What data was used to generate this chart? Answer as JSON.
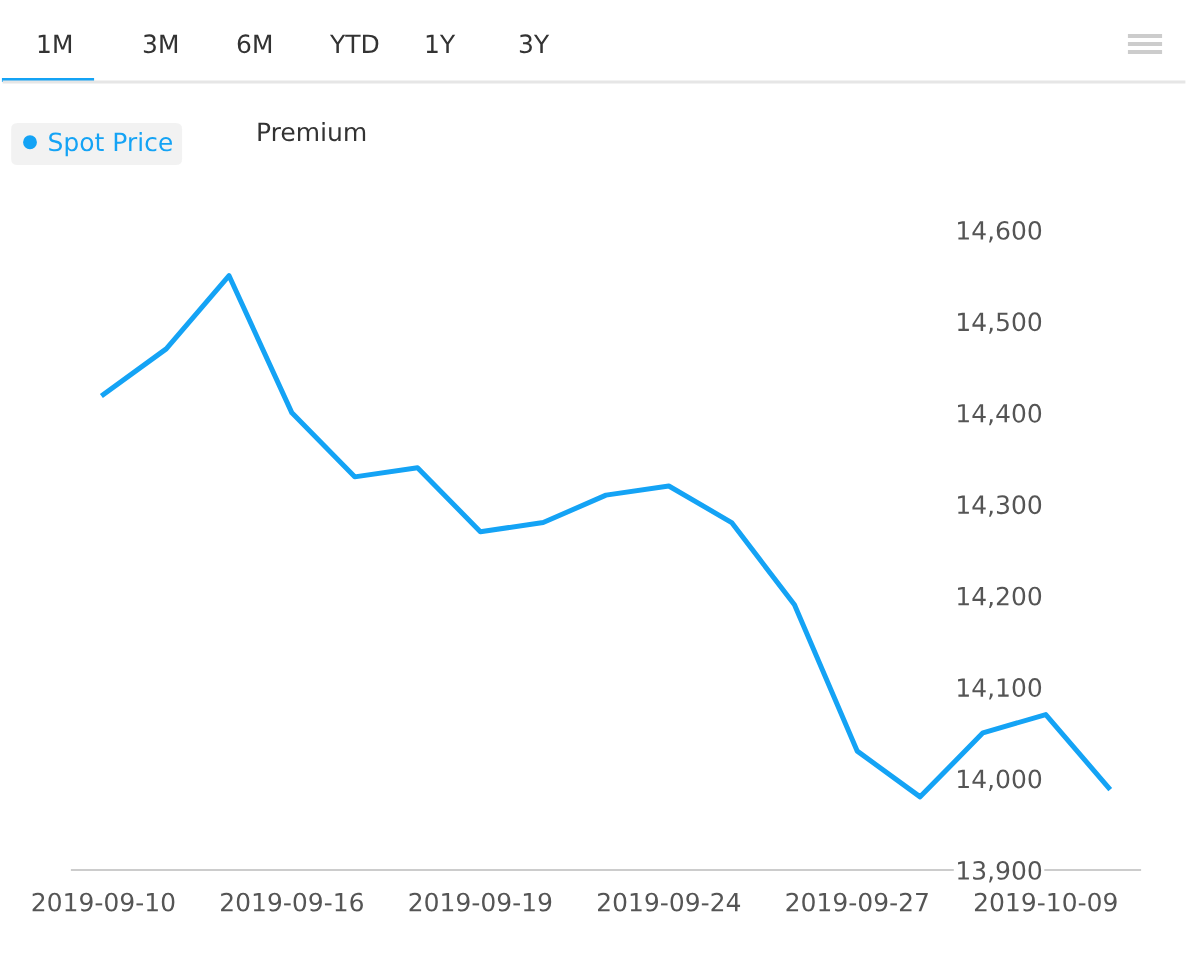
{
  "chart_data": {
    "type": "line",
    "categories": [
      "2019-09-10",
      null,
      null,
      "2019-09-16",
      null,
      null,
      "2019-09-19",
      null,
      null,
      "2019-09-24",
      null,
      null,
      "2019-09-27",
      null,
      null,
      "2019-10-09",
      null
    ],
    "series": [
      {
        "name": "Spot Price",
        "color": "#14a3f5",
        "values": [
          14420,
          14470,
          14550,
          14400,
          14330,
          14340,
          14270,
          14280,
          14310,
          14320,
          14280,
          14190,
          14030,
          13980,
          14050,
          14070,
          13990
        ]
      }
    ],
    "ylim": [
      13900,
      14600
    ],
    "yticks": [
      {
        "value": 13900,
        "label": "13,900"
      },
      {
        "value": 14000,
        "label": "14,000"
      },
      {
        "value": 14100,
        "label": "14,100"
      },
      {
        "value": 14200,
        "label": "14,200"
      },
      {
        "value": 14300,
        "label": "14,300"
      },
      {
        "value": 14400,
        "label": "14,400"
      },
      {
        "value": 14500,
        "label": "14,500"
      },
      {
        "value": 14600,
        "label": "14,600"
      }
    ],
    "grid": false,
    "legend": "top left",
    "marker": "none",
    "line_style": "solid",
    "annotations": [
      "1M",
      "3M",
      "6M",
      "YTD",
      "1Y",
      "3Y",
      "Premium"
    ]
  }
}
